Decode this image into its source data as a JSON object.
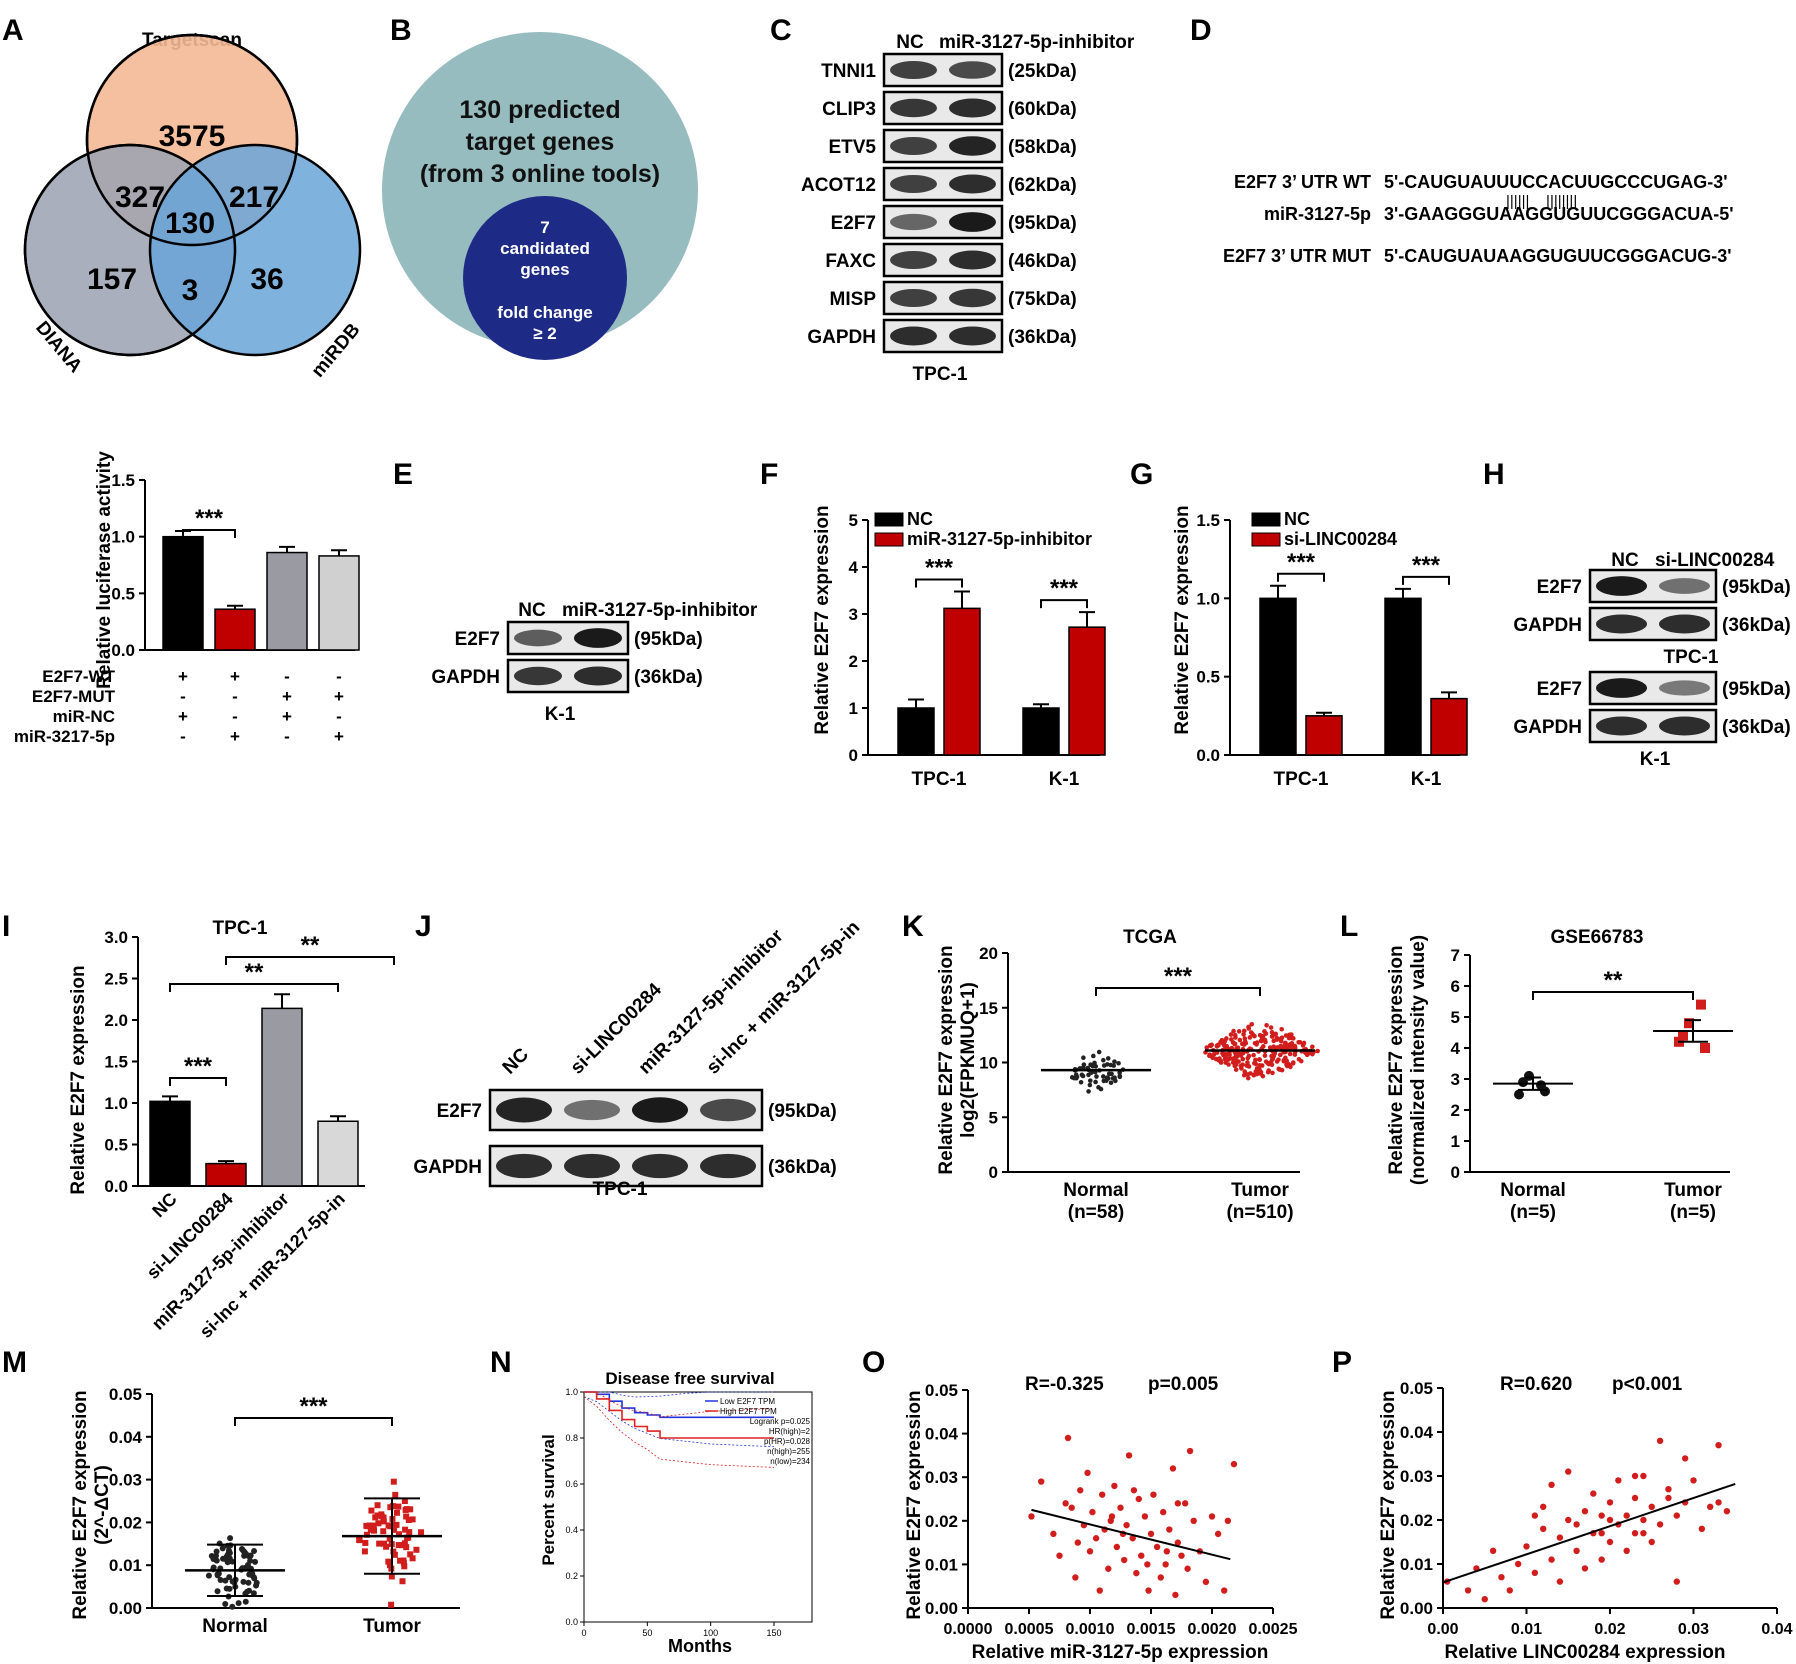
{
  "panel_letters": {
    "A": "A",
    "B": "B",
    "C": "C",
    "D": "D",
    "E": "E",
    "F": "F",
    "G": "G",
    "H": "H",
    "I": "I",
    "J": "J",
    "K": "K",
    "L": "L",
    "M": "M",
    "N": "N",
    "O": "O",
    "P": "P"
  },
  "venn": {
    "labels": {
      "targetscan": "Targetscan",
      "diana": "DIANA",
      "mirdb": "miRDB"
    },
    "counts": {
      "ts_only": "3575",
      "diana_only": "157",
      "mirdb_only": "36",
      "ts_diana": "327",
      "ts_mirdb": "217",
      "diana_mirdb": "3",
      "all": "130"
    },
    "colors": {
      "targetscan": "#f4b995",
      "diana": "#9aa1b1",
      "mirdb": "#6aa4d8"
    }
  },
  "panel_b": {
    "outer_lines": [
      "130 predicted",
      "target genes",
      "(from 3 online tools)"
    ],
    "inner_lines": [
      "7",
      "candidated",
      "genes",
      "fold change",
      "≥ 2"
    ],
    "outer_color": "#96bcbf",
    "inner_color": "#1d2a86"
  },
  "panel_c": {
    "col_labels": [
      "NC",
      "miR-3127-5p-inhibitor"
    ],
    "rows": [
      {
        "name": "TNNI1",
        "kda": "(25kDa)",
        "a": 0.75,
        "b": 0.7
      },
      {
        "name": "CLIP3",
        "kda": "(60kDa)",
        "a": 0.8,
        "b": 0.85
      },
      {
        "name": "ETV5",
        "kda": "(58kDa)",
        "a": 0.75,
        "b": 0.9
      },
      {
        "name": "ACOT12",
        "kda": "(62kDa)",
        "a": 0.75,
        "b": 0.85
      },
      {
        "name": "E2F7",
        "kda": "(95kDa)",
        "a": 0.55,
        "b": 0.95
      },
      {
        "name": "FAXC",
        "kda": "(46kDa)",
        "a": 0.75,
        "b": 0.85
      },
      {
        "name": "MISP",
        "kda": "(75kDa)",
        "a": 0.75,
        "b": 0.8
      },
      {
        "name": "GAPDH",
        "kda": "(36kDa)",
        "a": 0.85,
        "b": 0.85
      }
    ],
    "cell_line": "TPC-1"
  },
  "panel_d": {
    "rows": [
      {
        "label": "E2F7 3’ UTR WT",
        "seq": "5'-CAUGUAUUUCCACUUGCCCUGAG-3'"
      },
      {
        "label": "miR-3127-5p",
        "seq": "3'-GAAGGGUAAGGUGUUCGGGACUA-5'"
      },
      {
        "label": "E2F7 3’ UTR MUT",
        "seq": "5'-CAUGUAUAAGGUGUUCGGGACUG-3'"
      }
    ],
    "pairing": "||||||    ||||||||"
  },
  "panel_luc": {
    "ylabel": "Relative luciferase activity",
    "ticks": [
      "0.0",
      "0.5",
      "1.0",
      "1.5"
    ],
    "sig": "***",
    "row_labels": [
      "E2F7-WT",
      "E2F7-MUT",
      "miR-NC",
      "miR-3217-5p"
    ],
    "signs": [
      [
        "+",
        "+",
        "-",
        "-"
      ],
      [
        "-",
        "-",
        "+",
        "+"
      ],
      [
        "+",
        "-",
        "+",
        "-"
      ],
      [
        "-",
        "+",
        "-",
        "+"
      ]
    ]
  },
  "panel_e": {
    "col_labels": [
      "NC",
      "miR-3127-5p-inhibitor"
    ],
    "rows": [
      {
        "name": "E2F7",
        "kda": "(95kDa)",
        "a": 0.6,
        "b": 0.95
      },
      {
        "name": "GAPDH",
        "kda": "(36kDa)",
        "a": 0.8,
        "b": 0.85
      }
    ],
    "cell_line": "K-1"
  },
  "panel_f": {
    "ylabel": "Relative E2F7 expression",
    "legend": [
      "NC",
      "miR-3127-5p-inhibitor"
    ],
    "ticks": [
      "0",
      "1",
      "2",
      "3",
      "4",
      "5"
    ],
    "groups": [
      "TPC-1",
      "K-1"
    ],
    "sig": [
      "***",
      "***"
    ]
  },
  "panel_g": {
    "ylabel": "Relative E2F7 expression",
    "legend": [
      "NC",
      "si-LINC00284"
    ],
    "ticks": [
      "0.0",
      "0.5",
      "1.0",
      "1.5"
    ],
    "groups": [
      "TPC-1",
      "K-1"
    ],
    "sig": [
      "***",
      "***"
    ]
  },
  "panel_h": {
    "col_labels": [
      "NC",
      "si-LINC00284"
    ],
    "blots": [
      {
        "rows": [
          {
            "name": "E2F7",
            "kda": "(95kDa)",
            "a": 0.95,
            "b": 0.5
          },
          {
            "name": "GAPDH",
            "kda": "(36kDa)",
            "a": 0.85,
            "b": 0.85
          }
        ],
        "cell_line": "TPC-1"
      },
      {
        "rows": [
          {
            "name": "E2F7",
            "kda": "(95kDa)",
            "a": 0.95,
            "b": 0.45
          },
          {
            "name": "GAPDH",
            "kda": "(36kDa)",
            "a": 0.85,
            "b": 0.85
          }
        ],
        "cell_line": "K-1"
      }
    ]
  },
  "panel_i": {
    "title": "TPC-1",
    "ylabel": "Relative E2F7 expression",
    "ticks": [
      "0.0",
      "0.5",
      "1.0",
      "1.5",
      "2.0",
      "2.5",
      "3.0"
    ],
    "categories": [
      "NC",
      "si-LINC00284",
      "miR-3127-5p-inhibitor",
      "si-lnc + miR-3127-5p-in"
    ],
    "sig": [
      "***",
      "**",
      "**"
    ]
  },
  "panel_j": {
    "col_labels": [
      "NC",
      "si-LINC00284",
      "miR-3127-5p-inhibitor",
      "si-lnc + miR-3127-5p-in"
    ],
    "rows": [
      {
        "name": "E2F7",
        "kda": "(95kDa)",
        "levels": [
          0.9,
          0.5,
          0.95,
          0.7
        ]
      },
      {
        "name": "GAPDH",
        "kda": "(36kDa)",
        "levels": [
          0.85,
          0.85,
          0.85,
          0.85
        ]
      }
    ],
    "cell_line": "TPC-1"
  },
  "panel_k": {
    "title": "TCGA",
    "ylabel": [
      "Relative E2F7 expression",
      "log2(FPKMUQ+1)"
    ],
    "ticks": [
      "0",
      "5",
      "10",
      "15",
      "20"
    ],
    "groups": [
      {
        "name": "Normal",
        "n": "(n=58)"
      },
      {
        "name": "Tumor",
        "n": "(n=510)"
      }
    ],
    "sig": "***"
  },
  "panel_l": {
    "title": "GSE66783",
    "ylabel": [
      "Relative E2F7 expression",
      "(normalized intensity value)"
    ],
    "ticks": [
      "0",
      "1",
      "2",
      "3",
      "4",
      "5",
      "6",
      "7"
    ],
    "groups": [
      {
        "name": "Normal",
        "n": "(n=5)"
      },
      {
        "name": "Tumor",
        "n": "(n=5)"
      }
    ],
    "sig": "**"
  },
  "panel_m": {
    "ylabel": [
      "Relative E2F7 expression",
      "(2^-ΔCT)"
    ],
    "ticks": [
      "0.00",
      "0.01",
      "0.02",
      "0.03",
      "0.04",
      "0.05"
    ],
    "groups": [
      "Normal",
      "Tumor"
    ],
    "sig": "***"
  },
  "panel_n": {
    "title": "Disease free survival",
    "ylabel": "Percent survival",
    "xlabel": "Months",
    "yticks": [
      "0.0",
      "0.2",
      "0.4",
      "0.6",
      "0.8",
      "1.0"
    ],
    "xticks": [
      "0",
      "50",
      "100",
      "150"
    ],
    "legend": [
      "Low E2F7 TPM",
      "High E2F7 TPM"
    ],
    "stats": [
      "Logrank p=0.025",
      "HR(high)=2",
      "p(HR)=0.028",
      "n(high)=255",
      "n(low)=234"
    ]
  },
  "panel_o": {
    "stat_r": "R=-0.325",
    "stat_p": "p=0.005",
    "ylabel": "Relative E2F7 expression",
    "xlabel": "Relative miR-3127-5p expression",
    "yticks": [
      "0.00",
      "0.01",
      "0.02",
      "0.03",
      "0.04",
      "0.05"
    ],
    "xticks": [
      "0.0000",
      "0.0005",
      "0.0010",
      "0.0015",
      "0.0020",
      "0.0025"
    ]
  },
  "panel_p": {
    "stat_r": "R=0.620",
    "stat_p": "p<0.001",
    "ylabel": "Relative E2F7 expression",
    "xlabel": "Relative LINC00284 expression",
    "yticks": [
      "0.00",
      "0.01",
      "0.02",
      "0.03",
      "0.04",
      "0.05"
    ],
    "xticks": [
      "0.00",
      "0.01",
      "0.02",
      "0.03",
      "0.04"
    ]
  },
  "chart_data": [
    {
      "type": "bar",
      "panel": "luciferase",
      "categories": [
        "WT+miR-NC",
        "WT+miR-3217-5p",
        "MUT+miR-NC",
        "MUT+miR-3217-5p"
      ],
      "values": [
        1.0,
        0.36,
        0.86,
        0.83
      ],
      "errors": [
        0.05,
        0.03,
        0.05,
        0.05
      ],
      "colors": [
        "#000000",
        "#c00000",
        "#9a9aa2",
        "#d0d0d0"
      ],
      "ylim": [
        0,
        1.5
      ],
      "ylabel": "Relative luciferase activity"
    },
    {
      "type": "bar",
      "panel": "F",
      "categories": [
        "TPC-1",
        "K-1"
      ],
      "series": [
        {
          "name": "NC",
          "values": [
            1.0,
            1.0
          ],
          "errors": [
            0.18,
            0.08
          ]
        },
        {
          "name": "miR-3127-5p-inhibitor",
          "values": [
            3.12,
            2.72
          ],
          "errors": [
            0.36,
            0.32
          ]
        }
      ],
      "ylim": [
        0,
        5
      ],
      "ylabel": "Relative E2F7 expression"
    },
    {
      "type": "bar",
      "panel": "G",
      "categories": [
        "TPC-1",
        "K-1"
      ],
      "series": [
        {
          "name": "NC",
          "values": [
            1.0,
            1.0
          ],
          "errors": [
            0.08,
            0.06
          ]
        },
        {
          "name": "si-LINC00284",
          "values": [
            0.25,
            0.36
          ],
          "errors": [
            0.02,
            0.04
          ]
        }
      ],
      "ylim": [
        0,
        1.5
      ],
      "ylabel": "Relative E2F7 expression"
    },
    {
      "type": "bar",
      "panel": "I",
      "title": "TPC-1",
      "categories": [
        "NC",
        "si-LINC00284",
        "miR-3127-5p-inhibitor",
        "si-lnc + miR-3127-5p-in"
      ],
      "values": [
        1.02,
        0.27,
        2.14,
        0.78
      ],
      "errors": [
        0.06,
        0.03,
        0.17,
        0.06
      ],
      "colors": [
        "#000000",
        "#c00000",
        "#9a9aa2",
        "#d8d8d8"
      ],
      "ylim": [
        0,
        3
      ],
      "ylabel": "Relative E2F7 expression"
    },
    {
      "type": "scatter",
      "panel": "K",
      "title": "TCGA",
      "categories": [
        "Normal",
        "Tumor"
      ],
      "means": [
        9.3,
        11.1
      ],
      "ranges": [
        [
          6,
          12.5
        ],
        [
          6,
          14
        ]
      ],
      "n": [
        58,
        510
      ],
      "ylim": [
        0,
        20
      ]
    },
    {
      "type": "scatter",
      "panel": "L",
      "title": "GSE66783",
      "categories": [
        "Normal",
        "Tumor"
      ],
      "points": [
        [
          2.5,
          2.8,
          3.1,
          2.6,
          2.9
        ],
        [
          4.2,
          5.4,
          4.8,
          4.0,
          4.4
        ]
      ],
      "means": [
        2.85,
        4.55
      ],
      "sem": [
        0.2,
        0.35
      ],
      "ylim": [
        0,
        7
      ]
    },
    {
      "type": "scatter",
      "panel": "M",
      "categories": [
        "Normal",
        "Tumor"
      ],
      "means": [
        0.0088,
        0.0168
      ],
      "sd": [
        0.006,
        0.0088
      ],
      "ylim": [
        0,
        0.05
      ]
    },
    {
      "type": "line",
      "panel": "N",
      "title": "Disease free survival",
      "series": [
        {
          "name": "Low E2F7 TPM",
          "x": [
            0,
            10,
            20,
            30,
            40,
            50,
            60,
            80,
            100,
            150
          ],
          "y": [
            1.0,
            0.99,
            0.96,
            0.93,
            0.91,
            0.9,
            0.89,
            0.89,
            0.89,
            0.89
          ]
        },
        {
          "name": "High E2F7 TPM",
          "x": [
            0,
            10,
            20,
            30,
            40,
            50,
            60,
            80,
            100,
            150
          ],
          "y": [
            1.0,
            0.97,
            0.92,
            0.88,
            0.85,
            0.83,
            0.8,
            0.8,
            0.8,
            0.8
          ]
        }
      ],
      "xlim": [
        0,
        180
      ],
      "ylim": [
        0,
        1
      ]
    },
    {
      "type": "scatter",
      "panel": "O",
      "xlim": [
        0,
        0.0025
      ],
      "ylim": [
        0,
        0.05
      ],
      "fit": [
        [
          0.00052,
          0.0225
        ],
        [
          0.00215,
          0.0112
        ]
      ],
      "points": [
        [
          0.00052,
          0.021
        ],
        [
          0.0006,
          0.029
        ],
        [
          0.0007,
          0.017
        ],
        [
          0.00075,
          0.012
        ],
        [
          0.0008,
          0.024
        ],
        [
          0.00082,
          0.039
        ],
        [
          0.00088,
          0.007
        ],
        [
          0.00092,
          0.027
        ],
        [
          0.00095,
          0.019
        ],
        [
          0.00098,
          0.031
        ],
        [
          0.001,
          0.013
        ],
        [
          0.00102,
          0.022
        ],
        [
          0.00105,
          0.016
        ],
        [
          0.00108,
          0.004
        ],
        [
          0.0011,
          0.026
        ],
        [
          0.00112,
          0.018
        ],
        [
          0.00115,
          0.009
        ],
        [
          0.00118,
          0.021
        ],
        [
          0.0012,
          0.028
        ],
        [
          0.00122,
          0.014
        ],
        [
          0.00125,
          0.023
        ],
        [
          0.00128,
          0.011
        ],
        [
          0.0013,
          0.019
        ],
        [
          0.00132,
          0.035
        ],
        [
          0.00135,
          0.016
        ],
        [
          0.00138,
          0.008
        ],
        [
          0.0014,
          0.025
        ],
        [
          0.00142,
          0.012
        ],
        [
          0.00145,
          0.021
        ],
        [
          0.00148,
          0.004
        ],
        [
          0.0015,
          0.017
        ],
        [
          0.00152,
          0.026
        ],
        [
          0.00155,
          0.014
        ],
        [
          0.00158,
          0.007
        ],
        [
          0.0016,
          0.022
        ],
        [
          0.00162,
          0.01
        ],
        [
          0.00165,
          0.018
        ],
        [
          0.00168,
          0.032
        ],
        [
          0.0017,
          0.003
        ],
        [
          0.00172,
          0.015
        ],
        [
          0.00175,
          0.012
        ],
        [
          0.00178,
          0.024
        ],
        [
          0.0018,
          0.009
        ],
        [
          0.00182,
          0.036
        ],
        [
          0.00185,
          0.02
        ],
        [
          0.0019,
          0.013
        ],
        [
          0.00195,
          0.006
        ],
        [
          0.002,
          0.021
        ],
        [
          0.00205,
          0.017
        ],
        [
          0.0021,
          0.004
        ],
        [
          0.00213,
          0.02
        ],
        [
          0.00218,
          0.033
        ],
        [
          0.0009,
          0.015
        ],
        [
          0.00117,
          0.02
        ],
        [
          0.00136,
          0.027
        ],
        [
          0.00147,
          0.01
        ],
        [
          0.00163,
          0.013
        ],
        [
          0.00172,
          0.024
        ],
        [
          0.00085,
          0.023
        ],
        [
          0.00127,
          0.017
        ]
      ]
    },
    {
      "type": "scatter",
      "panel": "P",
      "xlim": [
        0,
        0.04
      ],
      "ylim": [
        0,
        0.05
      ],
      "fit": [
        [
          0.0,
          0.0058
        ],
        [
          0.035,
          0.0282
        ]
      ],
      "points": [
        [
          0.0005,
          0.006
        ],
        [
          0.003,
          0.004
        ],
        [
          0.004,
          0.009
        ],
        [
          0.005,
          0.002
        ],
        [
          0.006,
          0.013
        ],
        [
          0.007,
          0.007
        ],
        [
          0.008,
          0.004
        ],
        [
          0.009,
          0.01
        ],
        [
          0.01,
          0.014
        ],
        [
          0.011,
          0.008
        ],
        [
          0.012,
          0.018
        ],
        [
          0.012,
          0.023
        ],
        [
          0.013,
          0.011
        ],
        [
          0.014,
          0.016
        ],
        [
          0.014,
          0.006
        ],
        [
          0.015,
          0.02
        ],
        [
          0.015,
          0.031
        ],
        [
          0.016,
          0.013
        ],
        [
          0.017,
          0.009
        ],
        [
          0.017,
          0.022
        ],
        [
          0.018,
          0.017
        ],
        [
          0.018,
          0.026
        ],
        [
          0.019,
          0.011
        ],
        [
          0.019,
          0.021
        ],
        [
          0.02,
          0.015
        ],
        [
          0.02,
          0.024
        ],
        [
          0.021,
          0.019
        ],
        [
          0.021,
          0.029
        ],
        [
          0.022,
          0.013
        ],
        [
          0.022,
          0.021
        ],
        [
          0.023,
          0.017
        ],
        [
          0.023,
          0.025
        ],
        [
          0.024,
          0.02
        ],
        [
          0.024,
          0.03
        ],
        [
          0.025,
          0.015
        ],
        [
          0.025,
          0.023
        ],
        [
          0.026,
          0.038
        ],
        [
          0.026,
          0.019
        ],
        [
          0.027,
          0.027
        ],
        [
          0.028,
          0.021
        ],
        [
          0.028,
          0.006
        ],
        [
          0.029,
          0.024
        ],
        [
          0.03,
          0.029
        ],
        [
          0.031,
          0.018
        ],
        [
          0.032,
          0.023
        ],
        [
          0.033,
          0.024
        ],
        [
          0.034,
          0.022
        ],
        [
          0.013,
          0.028
        ],
        [
          0.016,
          0.019
        ],
        [
          0.02,
          0.02
        ],
        [
          0.023,
          0.03
        ],
        [
          0.027,
          0.025
        ],
        [
          0.011,
          0.021
        ],
        [
          0.019,
          0.017
        ],
        [
          0.024,
          0.017
        ],
        [
          0.029,
          0.034
        ],
        [
          0.033,
          0.037
        ]
      ]
    }
  ]
}
